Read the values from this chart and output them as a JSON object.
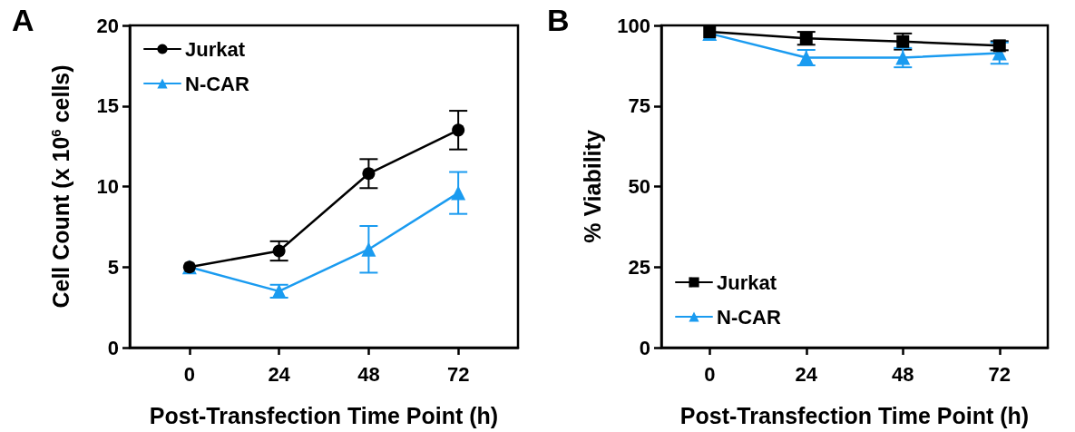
{
  "chart_data": [
    {
      "type": "line",
      "title": "A",
      "xlabel": "Post-Transfection Time Point (h)",
      "ylabel": "Cell Count (x 10$^{6}$ cells)",
      "x": [
        0,
        24,
        48,
        72
      ],
      "xlim": [
        -16,
        88
      ],
      "xticks": [
        0,
        24,
        48,
        72
      ],
      "ylim": [
        0,
        20
      ],
      "yticks": [
        0,
        5,
        10,
        15,
        20
      ],
      "legend": "top left",
      "series": [
        {
          "name": "Jurkat",
          "color": "#000000",
          "marker": "circle",
          "values": [
            5.0,
            6.0,
            10.8,
            13.5
          ],
          "errors": [
            null,
            0.6,
            0.9,
            1.2
          ]
        },
        {
          "name": "N-CAR",
          "color": "#1a9bf0",
          "marker": "triangle",
          "values": [
            5.0,
            3.5,
            6.1,
            9.6
          ],
          "errors": [
            null,
            0.4,
            1.45,
            1.3
          ]
        }
      ]
    },
    {
      "type": "line",
      "title": "B",
      "xlabel": "Post-Transfection Time Point (h)",
      "ylabel": "% Viability",
      "x": [
        0,
        24,
        48,
        72
      ],
      "xlim": [
        -12,
        84
      ],
      "xticks": [
        0,
        24,
        48,
        72
      ],
      "ylim": [
        0,
        100
      ],
      "yticks": [
        0,
        25,
        50,
        75,
        100
      ],
      "legend": "bottom left",
      "series": [
        {
          "name": "Jurkat",
          "color": "#000000",
          "marker": "square",
          "values": [
            98,
            96,
            95,
            93.7
          ],
          "errors": [
            null,
            2,
            2.5,
            1.4
          ]
        },
        {
          "name": "N-CAR",
          "color": "#1a9bf0",
          "marker": "triangle",
          "values": [
            97.5,
            90,
            90,
            91.4
          ],
          "errors": [
            null,
            2.4,
            3,
            3.3
          ]
        }
      ]
    }
  ]
}
